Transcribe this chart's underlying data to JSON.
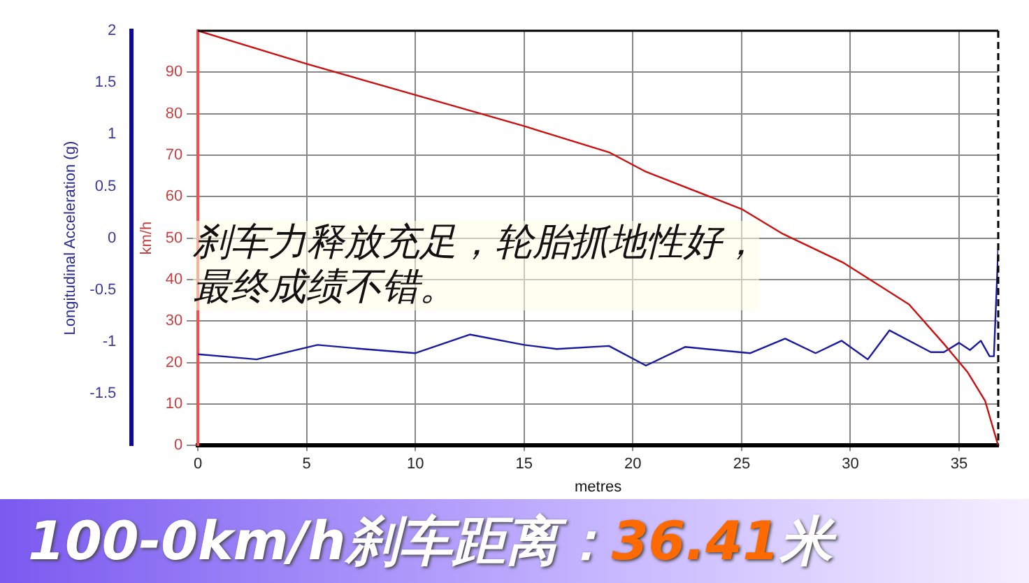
{
  "chart_data": {
    "type": "line",
    "title": "100-0km/h刹车距离：36.41米",
    "xlabel": "metres",
    "ylabel": "km/h",
    "y2label": "Longitudinal Acceleration (g)",
    "annotations": [
      "刹车力释放充足，轮胎抓地性好，",
      "最终成绩不错。"
    ],
    "xlim": [
      0,
      36.8
    ],
    "xticks": [
      0,
      5,
      10,
      15,
      20,
      25,
      30,
      35
    ],
    "ylim": [
      0,
      100
    ],
    "yticks": [
      0,
      10,
      20,
      30,
      40,
      50,
      60,
      70,
      80,
      90
    ],
    "y2lim": [
      -2,
      2
    ],
    "y2ticks": [
      -1.5,
      -1,
      -0.5,
      0,
      0.5,
      1,
      1.5,
      2
    ],
    "grid": true,
    "line_style": "solid",
    "marker": "none",
    "series": [
      {
        "color": "#cc1010",
        "x": [
          0,
          5,
          10,
          15,
          18.9,
          20.6,
          25,
          26.9,
          29.7,
          32.7,
          34.3,
          35.4,
          36.2,
          36.7,
          36.8
        ],
        "values": [
          100,
          92,
          84.5,
          77,
          70.7,
          66,
          57,
          51,
          44,
          34,
          24.5,
          17.6,
          10.7,
          1.7,
          0
        ]
      },
      {
        "color": "#1a1aa0",
        "axis": "y2",
        "x": [
          0,
          2.7,
          5.5,
          7.6,
          10,
          12.5,
          15,
          16.5,
          18.9,
          20.6,
          22.4,
          25.4,
          27,
          28.4,
          29.6,
          30.8,
          31.8,
          33.7,
          34.3,
          35,
          35.5,
          36,
          36.4,
          36.6,
          36.8
        ],
        "values": [
          -1.12,
          -1.17,
          -1.03,
          -1.07,
          -1.11,
          -0.93,
          -1.03,
          -1.07,
          -1.04,
          -1.23,
          -1.05,
          -1.11,
          -0.97,
          -1.11,
          -0.99,
          -1.17,
          -0.89,
          -1.1,
          -1.1,
          -1.01,
          -1.08,
          -0.99,
          -1.14,
          -1.14,
          -0.1
        ]
      }
    ]
  }
}
